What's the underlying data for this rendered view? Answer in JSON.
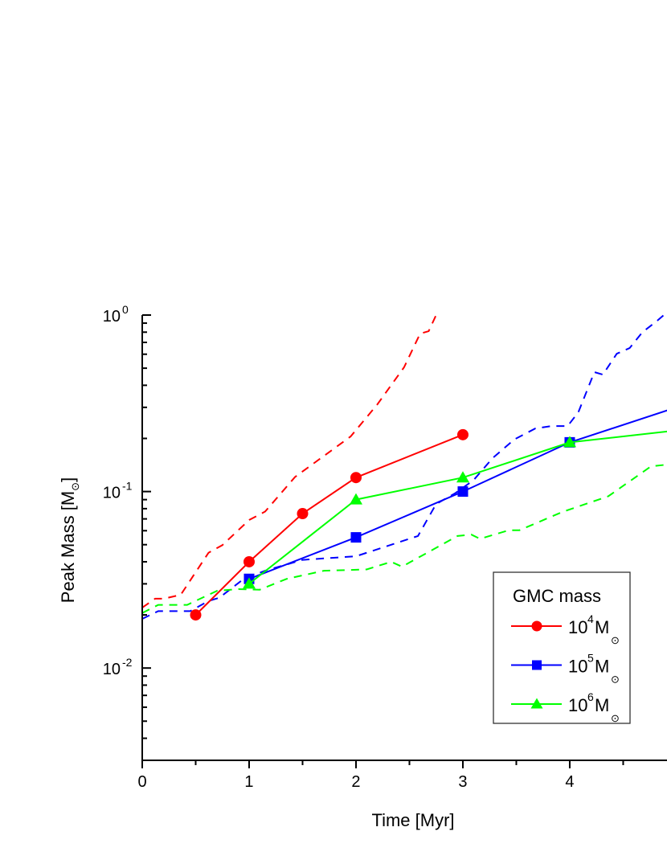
{
  "chart_data": {
    "type": "line",
    "xlabel": "Time [Myr]",
    "ylabel": {
      "text": "Peak Mass [M",
      "sub": "⊙",
      "close": "]"
    },
    "xlim": [
      0,
      4.91
    ],
    "ylim": [
      0.003,
      1
    ],
    "yscale": "log",
    "xticks": [
      "0",
      "1",
      "2",
      "3",
      "4"
    ],
    "yticks": [
      {
        "value": 1,
        "base": "10",
        "exp": "0"
      },
      {
        "value": 0.1,
        "base": "10",
        "exp": "-1"
      },
      {
        "value": 0.01,
        "base": "10",
        "exp": "-2"
      }
    ],
    "grid": false,
    "legend": {
      "title": "GMC mass",
      "placement": "lower-right",
      "entries": [
        {
          "base": "10",
          "exp": "4",
          "unit": "M",
          "sub": "⊙"
        },
        {
          "base": "10",
          "exp": "5",
          "unit": "M",
          "sub": "⊙"
        },
        {
          "base": "10",
          "exp": "6",
          "unit": "M",
          "sub": "⊙"
        }
      ]
    },
    "series": [
      {
        "name": "10^4 M⊙",
        "color": "#ff0000",
        "marker": "circle",
        "x": [
          0.5,
          1,
          1.5,
          2,
          3
        ],
        "y": [
          0.02,
          0.04,
          0.075,
          0.12,
          0.21
        ],
        "dashed": {
          "x": [
            0,
            0.12,
            0.2,
            0.36,
            0.62,
            0.75,
            1.0,
            1.15,
            1.43,
            1.95,
            2.2,
            2.45,
            2.6,
            2.68,
            2.75
          ],
          "y": [
            0.022,
            0.0247,
            0.0247,
            0.026,
            0.045,
            0.0497,
            0.069,
            0.077,
            0.121,
            0.205,
            0.312,
            0.506,
            0.785,
            0.81,
            1.0
          ]
        }
      },
      {
        "name": "10^5 M⊙",
        "color": "#0000ff",
        "marker": "square",
        "x": [
          1,
          2,
          3,
          4,
          5
        ],
        "y": [
          0.032,
          0.055,
          0.1,
          0.19,
          0.3
        ],
        "dashed": {
          "x": [
            0,
            0.15,
            0.45,
            0.62,
            0.72,
            0.95,
            1.15,
            1.5,
            2.0,
            2.58,
            2.75,
            2.93,
            3.1,
            3.28,
            3.48,
            3.68,
            3.83,
            3.98,
            4.08,
            4.23,
            4.31,
            4.44,
            4.56,
            4.68,
            4.81,
            4.88
          ],
          "y": [
            0.019,
            0.021,
            0.021,
            0.024,
            0.025,
            0.032,
            0.0356,
            0.041,
            0.043,
            0.056,
            0.085,
            0.098,
            0.116,
            0.155,
            0.197,
            0.228,
            0.235,
            0.235,
            0.281,
            0.475,
            0.46,
            0.604,
            0.65,
            0.8,
            0.92,
            1.0
          ]
        }
      },
      {
        "name": "10^6 M⊙",
        "color": "#00ff00",
        "marker": "triangle",
        "x": [
          1,
          2,
          3,
          4,
          5
        ],
        "y": [
          0.03,
          0.09,
          0.12,
          0.19,
          0.222
        ],
        "dashed": {
          "x": [
            0,
            0.15,
            0.42,
            0.7,
            0.9,
            1.1,
            1.35,
            1.7,
            2.1,
            2.33,
            2.43,
            2.95,
            3.08,
            3.16,
            3.43,
            3.53,
            3.93,
            4.36,
            4.76,
            4.91
          ],
          "y": [
            0.0205,
            0.0228,
            0.0228,
            0.0274,
            0.028,
            0.0278,
            0.032,
            0.0356,
            0.0362,
            0.04,
            0.0375,
            0.056,
            0.057,
            0.054,
            0.0604,
            0.0604,
            0.0766,
            0.094,
            0.139,
            0.142
          ]
        }
      }
    ]
  }
}
